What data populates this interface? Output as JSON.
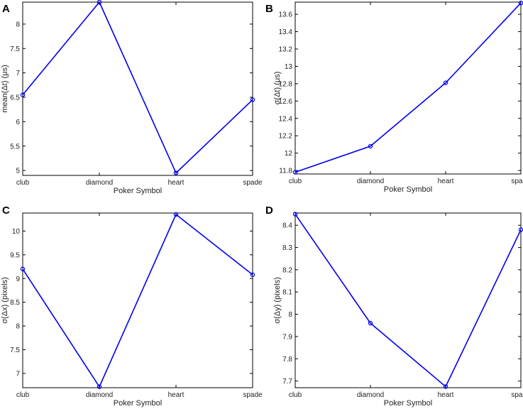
{
  "chart_data": [
    {
      "type": "line",
      "panel": "A",
      "categories": [
        "club",
        "diamond",
        "heart",
        "spade"
      ],
      "values": [
        6.55,
        8.45,
        4.95,
        6.45
      ],
      "xlabel": "Poker Symbol",
      "ylabel": "mean(Δt) (μs)",
      "ylim": [
        4.9,
        8.45
      ],
      "yticks": [
        5,
        5.5,
        6,
        6.5,
        7,
        7.5,
        8
      ],
      "ytick_labels": [
        "5",
        "5.5",
        "6",
        "6.5",
        "7",
        "7.5",
        "8"
      ],
      "color": "#0000ee"
    },
    {
      "type": "line",
      "panel": "B",
      "categories": [
        "club",
        "diamond",
        "heart",
        "spade"
      ],
      "values": [
        11.78,
        12.08,
        12.81,
        13.73
      ],
      "xlabel": "Poker Symbol",
      "ylabel": "σ(Δt) (μs)",
      "ylim": [
        11.76,
        13.74
      ],
      "yticks": [
        11.8,
        12,
        12.2,
        12.4,
        12.6,
        12.8,
        13,
        13.2,
        13.4,
        13.6
      ],
      "ytick_labels": [
        "11.8",
        "12",
        "12.2",
        "12.4",
        "12.6",
        "12.8",
        "13",
        "13.2",
        "13.4",
        "13.6"
      ],
      "color": "#0000ee"
    },
    {
      "type": "line",
      "panel": "C",
      "categories": [
        "club",
        "diamond",
        "heart",
        "spade"
      ],
      "values": [
        9.2,
        6.72,
        10.35,
        9.08
      ],
      "xlabel": "Poker Symbol",
      "ylabel": "σ(Δx) (pixels)",
      "ylim": [
        6.7,
        10.38
      ],
      "yticks": [
        7,
        7.5,
        8,
        8.5,
        9,
        9.5,
        10
      ],
      "ytick_labels": [
        "7",
        "7.5",
        "8",
        "8.5",
        "9",
        "9.5",
        "10"
      ],
      "color": "#0000ee"
    },
    {
      "type": "line",
      "panel": "D",
      "categories": [
        "club",
        "diamond",
        "heart",
        "spade"
      ],
      "values": [
        8.45,
        7.96,
        7.675,
        8.38
      ],
      "xlabel": "Poker Symbol",
      "ylabel": "σ(Δy) (pixels)",
      "ylim": [
        7.67,
        8.455
      ],
      "yticks": [
        7.7,
        7.8,
        7.9,
        8,
        8.1,
        8.2,
        8.3,
        8.4
      ],
      "ytick_labels": [
        "7.7",
        "7.8",
        "7.9",
        "8",
        "8.1",
        "8.2",
        "8.3",
        "8.4"
      ],
      "color": "#0000ee"
    }
  ]
}
